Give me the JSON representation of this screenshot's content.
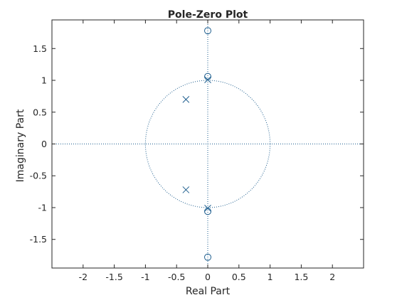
{
  "chart_data": {
    "type": "scatter",
    "title": "Pole-Zero Plot",
    "xlabel": "Real Part",
    "ylabel": "Imaginary Part",
    "xlim": [
      -2.5,
      2.5
    ],
    "ylim": [
      -1.95,
      1.95
    ],
    "xticks": [
      -2,
      -1.5,
      -1,
      -0.5,
      0,
      0.5,
      1,
      1.5,
      2
    ],
    "xtick_labels": [
      "-2",
      "-1.5",
      "-1",
      "-0.5",
      "0",
      "0.5",
      "1",
      "1.5",
      "2"
    ],
    "yticks": [
      -1.5,
      -1,
      -0.5,
      0,
      0.5,
      1,
      1.5
    ],
    "ytick_labels": [
      "-1.5",
      "-1",
      "-0.5",
      "0",
      "0.5",
      "1",
      "1.5"
    ],
    "grid": false,
    "legend": "none",
    "unit_circle": true,
    "reference_axes": true,
    "zeros": [
      {
        "re": 0,
        "im": 1.78
      },
      {
        "re": 0,
        "im": 1.06
      },
      {
        "re": 0,
        "im": -1.06
      },
      {
        "re": 0,
        "im": -1.78
      }
    ],
    "poles": [
      {
        "re": -0.35,
        "im": 0.7
      },
      {
        "re": -0.35,
        "im": -0.72
      },
      {
        "re": 0,
        "im": 1.01
      },
      {
        "re": 0,
        "im": -1.01
      }
    ],
    "marker_color": "#1f5f8f",
    "axis_color": "#262626"
  }
}
